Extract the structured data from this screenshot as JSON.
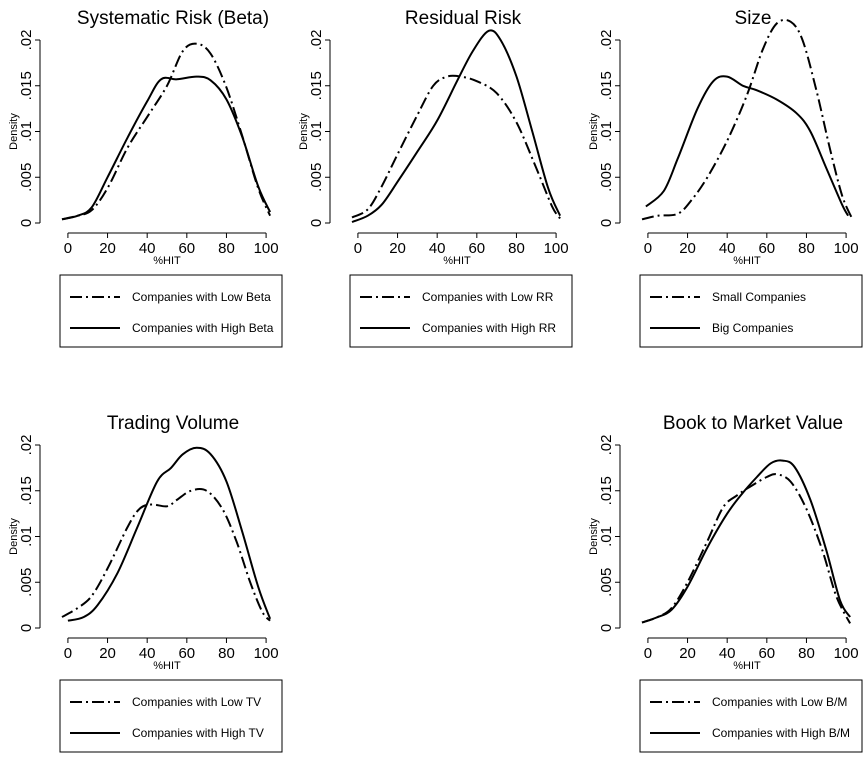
{
  "chart_data": [
    {
      "type": "line",
      "title": "Systematic Risk (Beta)",
      "xlabel": "%HIT",
      "ylabel": "Density",
      "xlim": [
        -5,
        105
      ],
      "ylim": [
        0,
        0.02
      ],
      "xticks": [
        "0",
        "20",
        "40",
        "60",
        "80",
        "100"
      ],
      "yticks": [
        "0",
        ".005",
        ".01",
        ".015",
        ".02"
      ],
      "legend_position": "below",
      "series": [
        {
          "name": "Companies with Low Beta",
          "style": "dashdot",
          "points": [
            [
              -3,
              0.0004
            ],
            [
              5,
              0.0008
            ],
            [
              12,
              0.0014
            ],
            [
              20,
              0.0038
            ],
            [
              30,
              0.0082
            ],
            [
              40,
              0.0116
            ],
            [
              50,
              0.015
            ],
            [
              58,
              0.0188
            ],
            [
              65,
              0.0196
            ],
            [
              72,
              0.0185
            ],
            [
              80,
              0.0148
            ],
            [
              88,
              0.0095
            ],
            [
              96,
              0.0038
            ],
            [
              102,
              0.0008
            ]
          ]
        },
        {
          "name": "Companies with High Beta",
          "style": "solid",
          "points": [
            [
              -3,
              0.0004
            ],
            [
              5,
              0.0008
            ],
            [
              12,
              0.0017
            ],
            [
              20,
              0.005
            ],
            [
              30,
              0.0093
            ],
            [
              40,
              0.0133
            ],
            [
              47,
              0.0157
            ],
            [
              55,
              0.0157
            ],
            [
              65,
              0.016
            ],
            [
              72,
              0.0156
            ],
            [
              80,
              0.0135
            ],
            [
              88,
              0.0094
            ],
            [
              96,
              0.004
            ],
            [
              102,
              0.0012
            ]
          ]
        }
      ]
    },
    {
      "type": "line",
      "title": "Residual Risk",
      "xlabel": "%HIT",
      "ylabel": "Density",
      "xlim": [
        -5,
        105
      ],
      "ylim": [
        0,
        0.02
      ],
      "xticks": [
        "0",
        "20",
        "40",
        "60",
        "80",
        "100"
      ],
      "yticks": [
        "0",
        ".005",
        ".01",
        ".015",
        ".02"
      ],
      "legend_position": "below",
      "series": [
        {
          "name": "Companies with Low RR",
          "style": "dashdot",
          "points": [
            [
              -3,
              0.0006
            ],
            [
              5,
              0.0015
            ],
            [
              12,
              0.004
            ],
            [
              20,
              0.0075
            ],
            [
              30,
              0.0118
            ],
            [
              38,
              0.015
            ],
            [
              45,
              0.016
            ],
            [
              52,
              0.016
            ],
            [
              60,
              0.0155
            ],
            [
              70,
              0.0142
            ],
            [
              80,
              0.011
            ],
            [
              90,
              0.006
            ],
            [
              98,
              0.0018
            ],
            [
              102,
              0.0005
            ]
          ]
        },
        {
          "name": "Companies with High RR",
          "style": "solid",
          "points": [
            [
              -3,
              0.0001
            ],
            [
              5,
              0.0008
            ],
            [
              12,
              0.002
            ],
            [
              20,
              0.0045
            ],
            [
              30,
              0.0078
            ],
            [
              40,
              0.0112
            ],
            [
              50,
              0.0155
            ],
            [
              58,
              0.0188
            ],
            [
              66,
              0.021
            ],
            [
              72,
              0.02
            ],
            [
              80,
              0.016
            ],
            [
              88,
              0.01
            ],
            [
              96,
              0.0038
            ],
            [
              102,
              0.0008
            ]
          ]
        }
      ]
    },
    {
      "type": "line",
      "title": "Size",
      "xlabel": "%HIT",
      "ylabel": "Density",
      "xlim": [
        -5,
        105
      ],
      "ylim": [
        0,
        0.02
      ],
      "xticks": [
        "0",
        "20",
        "40",
        "60",
        "80",
        "100"
      ],
      "yticks": [
        "0",
        ".005",
        ".01",
        ".015",
        ".02"
      ],
      "legend_position": "below",
      "series": [
        {
          "name": "Small Companies",
          "style": "dashdot",
          "points": [
            [
              -3,
              0.0004
            ],
            [
              5,
              0.0008
            ],
            [
              15,
              0.001
            ],
            [
              22,
              0.0025
            ],
            [
              30,
              0.005
            ],
            [
              40,
              0.009
            ],
            [
              50,
              0.014
            ],
            [
              58,
              0.019
            ],
            [
              65,
              0.0218
            ],
            [
              72,
              0.022
            ],
            [
              78,
              0.02
            ],
            [
              85,
              0.0145
            ],
            [
              92,
              0.008
            ],
            [
              98,
              0.003
            ],
            [
              103,
              0.0005
            ]
          ]
        },
        {
          "name": "Big Companies",
          "style": "solid",
          "points": [
            [
              -1,
              0.0018
            ],
            [
              8,
              0.0035
            ],
            [
              15,
              0.007
            ],
            [
              25,
              0.0125
            ],
            [
              33,
              0.0155
            ],
            [
              40,
              0.016
            ],
            [
              48,
              0.015
            ],
            [
              55,
              0.0145
            ],
            [
              65,
              0.0135
            ],
            [
              75,
              0.012
            ],
            [
              82,
              0.01
            ],
            [
              90,
              0.006
            ],
            [
              98,
              0.002
            ],
            [
              101,
              0.0008
            ]
          ]
        }
      ]
    },
    {
      "type": "line",
      "title": "Trading Volume",
      "xlabel": "%HIT",
      "ylabel": "Density",
      "xlim": [
        -5,
        105
      ],
      "ylim": [
        0,
        0.02
      ],
      "xticks": [
        "0",
        "20",
        "40",
        "60",
        "80",
        "100"
      ],
      "yticks": [
        "0",
        ".005",
        ".01",
        ".015",
        ".02"
      ],
      "legend_position": "below",
      "series": [
        {
          "name": "Companies with Low TV",
          "style": "dashdot",
          "points": [
            [
              -3,
              0.0012
            ],
            [
              5,
              0.0022
            ],
            [
              12,
              0.0035
            ],
            [
              20,
              0.0065
            ],
            [
              30,
              0.011
            ],
            [
              36,
              0.013
            ],
            [
              42,
              0.0135
            ],
            [
              50,
              0.0133
            ],
            [
              55,
              0.014
            ],
            [
              62,
              0.015
            ],
            [
              70,
              0.015
            ],
            [
              78,
              0.013
            ],
            [
              85,
              0.0095
            ],
            [
              92,
              0.005
            ],
            [
              98,
              0.0018
            ],
            [
              102,
              0.0008
            ]
          ]
        },
        {
          "name": "Companies with High TV",
          "style": "solid",
          "points": [
            [
              0,
              0.0008
            ],
            [
              8,
              0.0012
            ],
            [
              15,
              0.0025
            ],
            [
              25,
              0.006
            ],
            [
              35,
              0.011
            ],
            [
              45,
              0.016
            ],
            [
              52,
              0.0175
            ],
            [
              58,
              0.019
            ],
            [
              65,
              0.0197
            ],
            [
              72,
              0.019
            ],
            [
              80,
              0.016
            ],
            [
              88,
              0.0105
            ],
            [
              96,
              0.0045
            ],
            [
              102,
              0.001
            ]
          ]
        }
      ]
    },
    {
      "type": "line",
      "title": "Book to Market Value",
      "xlabel": "%HIT",
      "ylabel": "Density",
      "xlim": [
        -5,
        105
      ],
      "ylim": [
        0,
        0.02
      ],
      "xticks": [
        "0",
        "20",
        "40",
        "60",
        "80",
        "100"
      ],
      "yticks": [
        "0",
        ".005",
        ".01",
        ".015",
        ".02"
      ],
      "legend_position": "below",
      "series": [
        {
          "name": "Companies with Low B/M",
          "style": "dashdot",
          "points": [
            [
              -3,
              0.0006
            ],
            [
              5,
              0.0012
            ],
            [
              12,
              0.0022
            ],
            [
              20,
              0.005
            ],
            [
              30,
              0.0095
            ],
            [
              38,
              0.0132
            ],
            [
              45,
              0.0145
            ],
            [
              52,
              0.0155
            ],
            [
              60,
              0.0165
            ],
            [
              65,
              0.0168
            ],
            [
              72,
              0.016
            ],
            [
              80,
              0.013
            ],
            [
              88,
              0.0085
            ],
            [
              95,
              0.0035
            ],
            [
              102,
              0.0005
            ]
          ]
        },
        {
          "name": "Companies with High B/M",
          "style": "solid",
          "points": [
            [
              -3,
              0.0006
            ],
            [
              5,
              0.0012
            ],
            [
              12,
              0.002
            ],
            [
              20,
              0.0045
            ],
            [
              30,
              0.0088
            ],
            [
              40,
              0.0125
            ],
            [
              48,
              0.0148
            ],
            [
              55,
              0.0165
            ],
            [
              62,
              0.018
            ],
            [
              68,
              0.0183
            ],
            [
              74,
              0.0176
            ],
            [
              82,
              0.014
            ],
            [
              90,
              0.0085
            ],
            [
              97,
              0.003
            ],
            [
              102,
              0.0012
            ]
          ]
        }
      ]
    }
  ]
}
